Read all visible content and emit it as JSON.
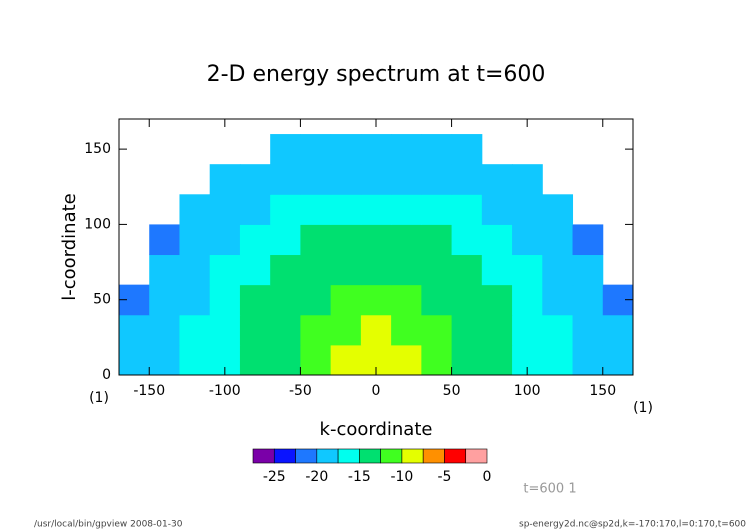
{
  "chart_data": {
    "type": "heatmap",
    "title": "2-D energy spectrum at t=600",
    "x_label": "k-coordinate",
    "y_label": "l-coordinate",
    "x_unit": "(1)",
    "y_unit": "(1)",
    "info": "t=600 1",
    "footer_left": "/usr/local/bin/gpview   2008-01-30",
    "footer_right": "sp-energy2d.nc@sp2d,k=-170:170,l=0:170,t=600",
    "xlim": [
      -170,
      170
    ],
    "ylim": [
      0,
      170
    ],
    "xticks": [
      -150,
      -100,
      -50,
      0,
      50,
      100,
      150
    ],
    "yticks": [
      0,
      50,
      100,
      150
    ],
    "x": [
      -160,
      -140,
      -120,
      -100,
      -80,
      -60,
      -40,
      -20,
      0,
      20,
      40,
      60,
      80,
      100,
      120,
      140,
      160
    ],
    "y": [
      10,
      30,
      50,
      70,
      90,
      110,
      130,
      150
    ],
    "values": [
      [
        -20,
        -19,
        -17,
        -16,
        -14,
        -13,
        -11,
        -10,
        -9,
        -10,
        -11,
        -13,
        -14,
        -16,
        -17,
        -19,
        -20
      ],
      [
        -20,
        -19,
        -17,
        -16,
        -14,
        -13,
        -12,
        -11,
        -10,
        -11,
        -12,
        -13,
        -14,
        -16,
        -17,
        -19,
        -20
      ],
      [
        -21,
        -19,
        -18,
        -16,
        -15,
        -14,
        -13,
        -12,
        -12,
        -12,
        -13,
        -14,
        -15,
        -16,
        -18,
        -19,
        -21
      ],
      [
        null,
        -20,
        -18,
        -17,
        -16,
        -15,
        -14,
        -13,
        -13,
        -13,
        -14,
        -15,
        -16,
        -17,
        -18,
        -20,
        null
      ],
      [
        null,
        -21,
        -19,
        -18,
        -17,
        -16,
        -15,
        -15,
        -15,
        -15,
        -15,
        -16,
        -17,
        -18,
        -19,
        -21,
        null
      ],
      [
        null,
        null,
        -20,
        -19,
        -18,
        -17,
        -17,
        -16,
        -16,
        -16,
        -17,
        -17,
        -18,
        -19,
        -20,
        null,
        null
      ],
      [
        null,
        null,
        null,
        -20,
        -19,
        -19,
        -18,
        -18,
        -18,
        -18,
        -18,
        -19,
        -19,
        -20,
        null,
        null,
        null
      ],
      [
        null,
        null,
        null,
        null,
        null,
        -20,
        -20,
        -19,
        -19,
        -19,
        -20,
        -20,
        null,
        null,
        null,
        null,
        null
      ]
    ],
    "levels": [
      -27.5,
      -25,
      -22.5,
      -20,
      -17.5,
      -15,
      -12.5,
      -10,
      -7.5,
      -5,
      -2.5,
      0
    ],
    "colors": [
      "#7a00a8",
      "#0a14ff",
      "#1e78ff",
      "#10c8ff",
      "#00ffee",
      "#00e070",
      "#40ff20",
      "#e4ff00",
      "#ff9000",
      "#ff0000",
      "#ffa0a0"
    ],
    "colorbar_ticks": [
      -25,
      -20,
      -15,
      -10,
      -5,
      0
    ]
  }
}
